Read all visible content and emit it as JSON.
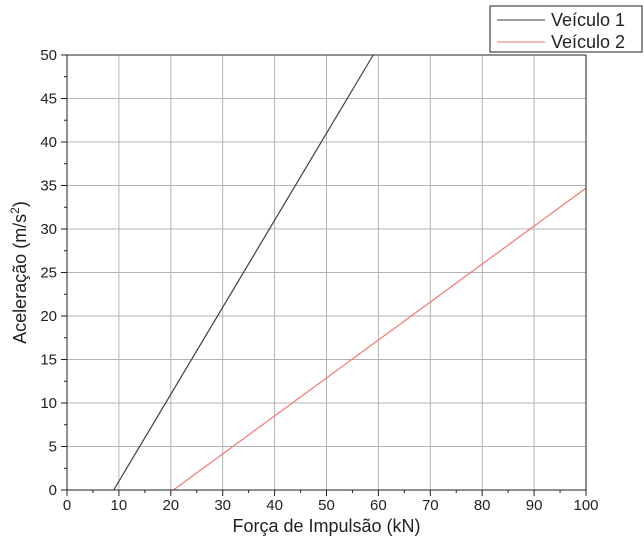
{
  "chart_data": {
    "type": "line",
    "title": "",
    "xlabel": "Força de Impulsão (kN)",
    "ylabel_main": "Aceleração (m/s",
    "ylabel_sup": "2",
    "ylabel_end": ")",
    "xlim": [
      0,
      100
    ],
    "ylim": [
      0,
      50
    ],
    "xticks": [
      0,
      10,
      20,
      30,
      40,
      50,
      60,
      70,
      80,
      90,
      100
    ],
    "yticks": [
      0,
      5,
      10,
      15,
      20,
      25,
      30,
      35,
      40,
      45,
      50
    ],
    "grid": true,
    "legend_position": "top-right",
    "series": [
      {
        "name": "Veículo 1",
        "color": "#404040",
        "x": [
          9,
          59
        ],
        "y": [
          0,
          50
        ]
      },
      {
        "name": "Veículo 2",
        "color": "#f07a72",
        "x": [
          20.5,
          100
        ],
        "y": [
          0,
          34.7
        ]
      }
    ]
  }
}
